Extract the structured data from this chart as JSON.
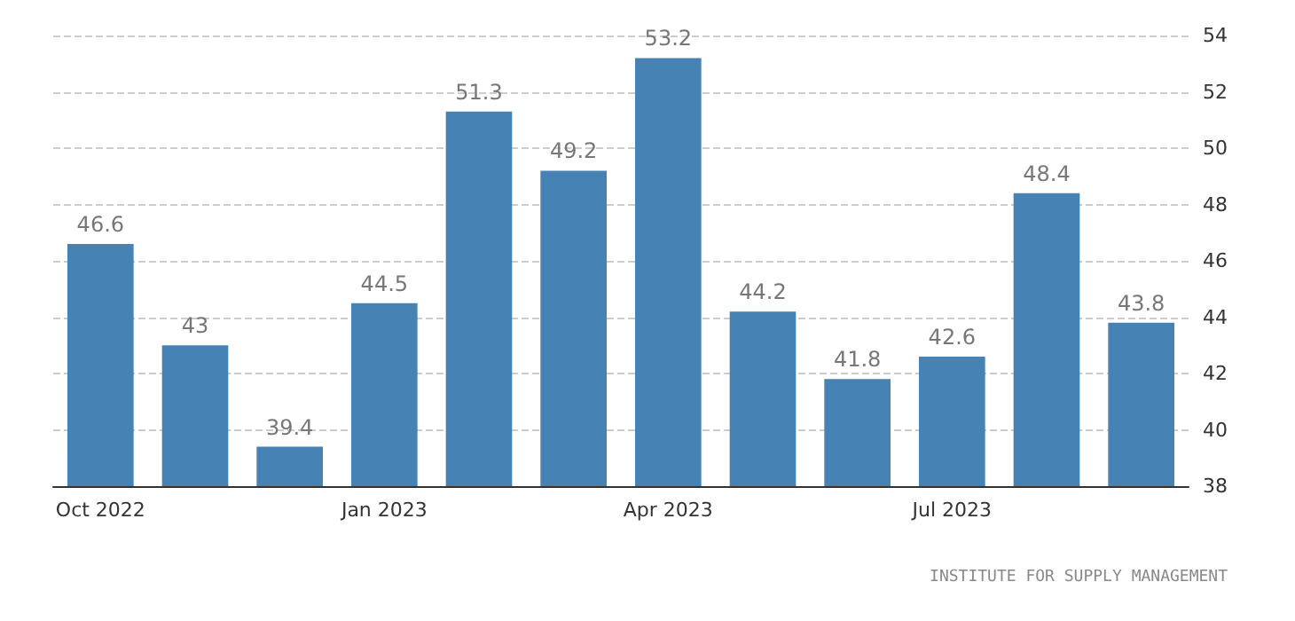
{
  "chart_data": {
    "type": "bar",
    "categories": [
      "Oct 2022",
      null,
      null,
      "Jan 2023",
      null,
      null,
      "Apr 2023",
      null,
      null,
      "Jul 2023",
      null,
      null
    ],
    "values": [
      46.6,
      43,
      39.4,
      44.5,
      51.3,
      49.2,
      53.2,
      44.2,
      41.8,
      42.6,
      48.4,
      43.8
    ],
    "color": "#4682b4",
    "ylim": [
      38,
      54
    ],
    "yticks": [
      38,
      40,
      42,
      44,
      46,
      48,
      50,
      52,
      54
    ],
    "grid": "y",
    "data_labels": true,
    "annotations": [
      "INSTITUTE FOR SUPPLY MANAGEMENT"
    ]
  }
}
